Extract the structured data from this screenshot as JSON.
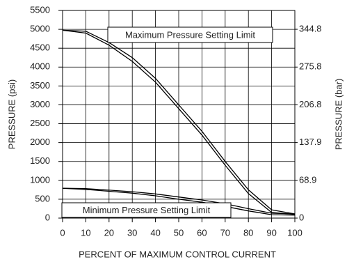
{
  "chart_data": {
    "type": "line",
    "xlabel": "PERCENT OF MAXIMUM CONTROL CURRENT",
    "ylabel": "PRESSURE (psi)",
    "y2label": "PRESSURE (bar)",
    "x": [
      0,
      10,
      20,
      30,
      40,
      50,
      60,
      70,
      80,
      90,
      100
    ],
    "series": [
      {
        "color": "#000000",
        "values": [
          4975,
          4950,
          4650,
          4250,
          3700,
          3000,
          2300,
          1500,
          750,
          220,
          110
        ]
      },
      {
        "color": "#000000",
        "values": [
          4975,
          4900,
          4580,
          4150,
          3600,
          2900,
          2200,
          1400,
          650,
          150,
          100
        ]
      },
      {
        "color": "#000000",
        "values": [
          790,
          780,
          740,
          700,
          640,
          560,
          480,
          380,
          250,
          130,
          110
        ]
      },
      {
        "color": "#000000",
        "values": [
          790,
          760,
          710,
          660,
          590,
          500,
          420,
          310,
          190,
          90,
          80
        ]
      }
    ],
    "annotations": [
      "Maximum Pressure Setting Limit",
      "Minimum Pressure Setting Limit"
    ],
    "xlim": [
      0,
      100
    ],
    "xticks": [
      0,
      10,
      20,
      30,
      40,
      50,
      60,
      70,
      80,
      90,
      100
    ],
    "ylim": [
      0,
      5500
    ],
    "yticks": [
      0,
      500,
      1000,
      1500,
      2000,
      2500,
      3000,
      3500,
      4000,
      4500,
      5000,
      5500
    ],
    "y2lim": [
      0,
      379.2
    ],
    "y2ticks": [
      0,
      68.9,
      137.9,
      206.8,
      275.8,
      344.8
    ],
    "grid": true
  }
}
